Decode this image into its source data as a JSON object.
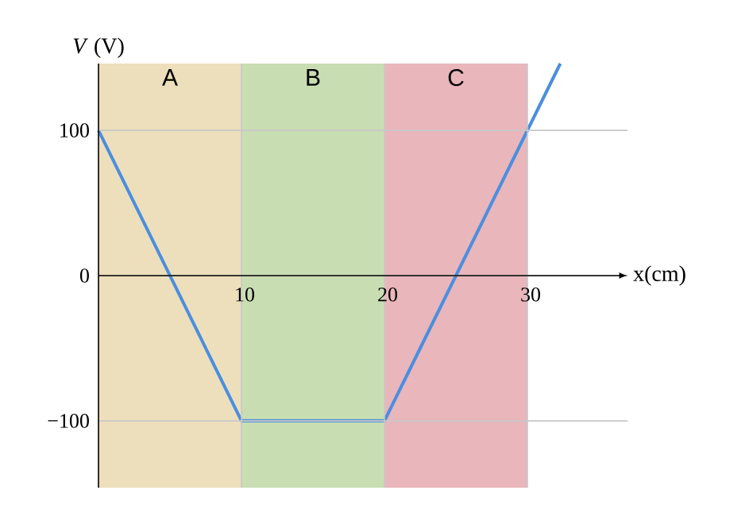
{
  "chart_data": {
    "type": "line",
    "xlabel": "x(cm)",
    "ylabel": "*V* (V)",
    "xlim": [
      0,
      37
    ],
    "ylim": [
      -146,
      146
    ],
    "xticks": [
      10,
      20,
      30
    ],
    "yticks": [
      {
        "value": -100,
        "label": "−100"
      },
      0,
      100
    ],
    "grid": true,
    "bands": [
      {
        "axis": "x",
        "from": 0,
        "to": 10,
        "label": "A",
        "color": "#eddfbb"
      },
      {
        "axis": "x",
        "from": 10,
        "to": 20,
        "label": "B",
        "color": "#c9ddb2"
      },
      {
        "axis": "x",
        "from": 20,
        "to": 30,
        "label": "C",
        "color": "#e8b6bb"
      }
    ],
    "series": [
      {
        "color": "#4a8ee0",
        "x": [
          0,
          10,
          20,
          32.3
        ],
        "values": [
          100,
          -100,
          -100,
          146
        ]
      }
    ]
  }
}
